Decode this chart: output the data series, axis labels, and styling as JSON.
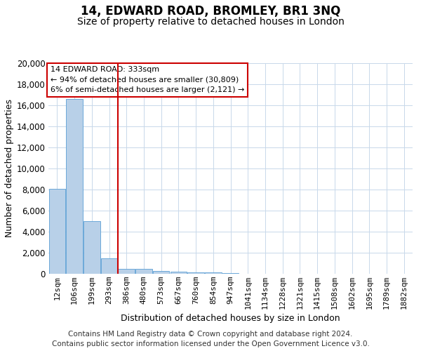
{
  "title": "14, EDWARD ROAD, BROMLEY, BR1 3NQ",
  "subtitle": "Size of property relative to detached houses in London",
  "xlabel": "Distribution of detached houses by size in London",
  "ylabel": "Number of detached properties",
  "categories": [
    "12sqm",
    "106sqm",
    "199sqm",
    "293sqm",
    "386sqm",
    "480sqm",
    "573sqm",
    "667sqm",
    "760sqm",
    "854sqm",
    "947sqm",
    "1041sqm",
    "1134sqm",
    "1228sqm",
    "1321sqm",
    "1415sqm",
    "1508sqm",
    "1602sqm",
    "1695sqm",
    "1789sqm",
    "1882sqm"
  ],
  "values": [
    8050,
    16600,
    5000,
    1500,
    480,
    480,
    290,
    195,
    160,
    110,
    75,
    0,
    0,
    0,
    0,
    0,
    0,
    0,
    0,
    0,
    0
  ],
  "bar_color": "#b8d0e8",
  "bar_edge_color": "#5a9fd4",
  "vline_color": "#cc0000",
  "vline_x": 3.5,
  "ylim": [
    0,
    20000
  ],
  "yticks": [
    0,
    2000,
    4000,
    6000,
    8000,
    10000,
    12000,
    14000,
    16000,
    18000,
    20000
  ],
  "annotation_text": "14 EDWARD ROAD: 333sqm\n← 94% of detached houses are smaller (30,809)\n6% of semi-detached houses are larger (2,121) →",
  "annotation_box_edgecolor": "#cc0000",
  "footer_line1": "Contains HM Land Registry data © Crown copyright and database right 2024.",
  "footer_line2": "Contains public sector information licensed under the Open Government Licence v3.0.",
  "bg_color": "#ffffff",
  "grid_color": "#c8d8ea",
  "title_fontsize": 12,
  "subtitle_fontsize": 10,
  "axis_label_fontsize": 9,
  "tick_fontsize": 8,
  "annot_fontsize": 8,
  "footer_fontsize": 7.5
}
